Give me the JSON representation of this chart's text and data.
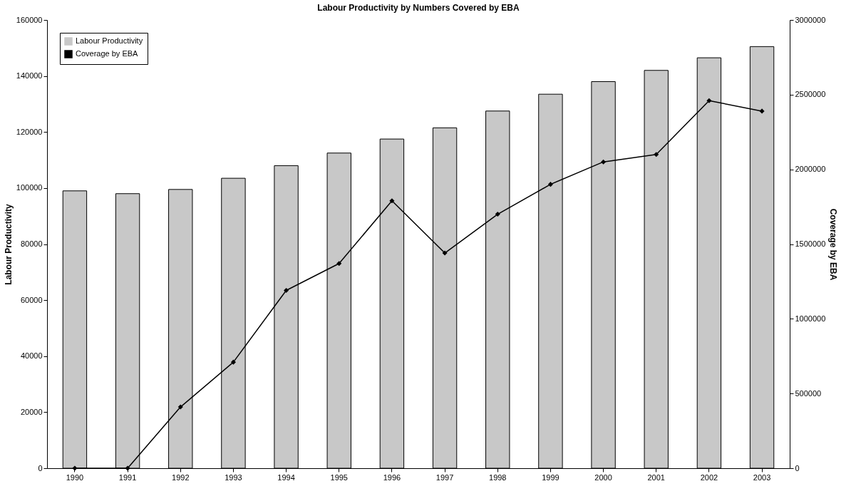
{
  "chart_data": {
    "type": "bar",
    "title": "Labour Productivity by Numbers Covered by EBA",
    "ylabel": "Labour Productivity",
    "y2label": "Coverage by EBA",
    "categories": [
      "1990",
      "1991",
      "1992",
      "1993",
      "1994",
      "1995",
      "1996",
      "1997",
      "1998",
      "1999",
      "2000",
      "2001",
      "2002",
      "2003"
    ],
    "series": [
      {
        "name": "Labour Productivity",
        "color": "#c8c8c8",
        "values": [
          99000,
          98000,
          99500,
          103500,
          108000,
          112500,
          117500,
          121500,
          127500,
          133500,
          138000,
          142000,
          146500,
          150500
        ]
      },
      {
        "name": "Coverage by EBA",
        "type": "line",
        "axis": "y2",
        "color": "#000000",
        "marker": "diamond",
        "values": [
          0,
          0,
          410000,
          710000,
          1190000,
          1370000,
          1790000,
          1440000,
          1700000,
          1900000,
          2050000,
          2100000,
          2460000,
          2390000
        ]
      }
    ],
    "ylim": [
      0,
      160000
    ],
    "yticks": [
      0,
      20000,
      40000,
      60000,
      80000,
      100000,
      120000,
      140000,
      160000
    ],
    "y2lim": [
      0,
      3000000
    ],
    "y2ticks": [
      0,
      500000,
      1000000,
      1500000,
      2000000,
      2500000,
      3000000
    ],
    "grid": false,
    "legend": "top left"
  }
}
